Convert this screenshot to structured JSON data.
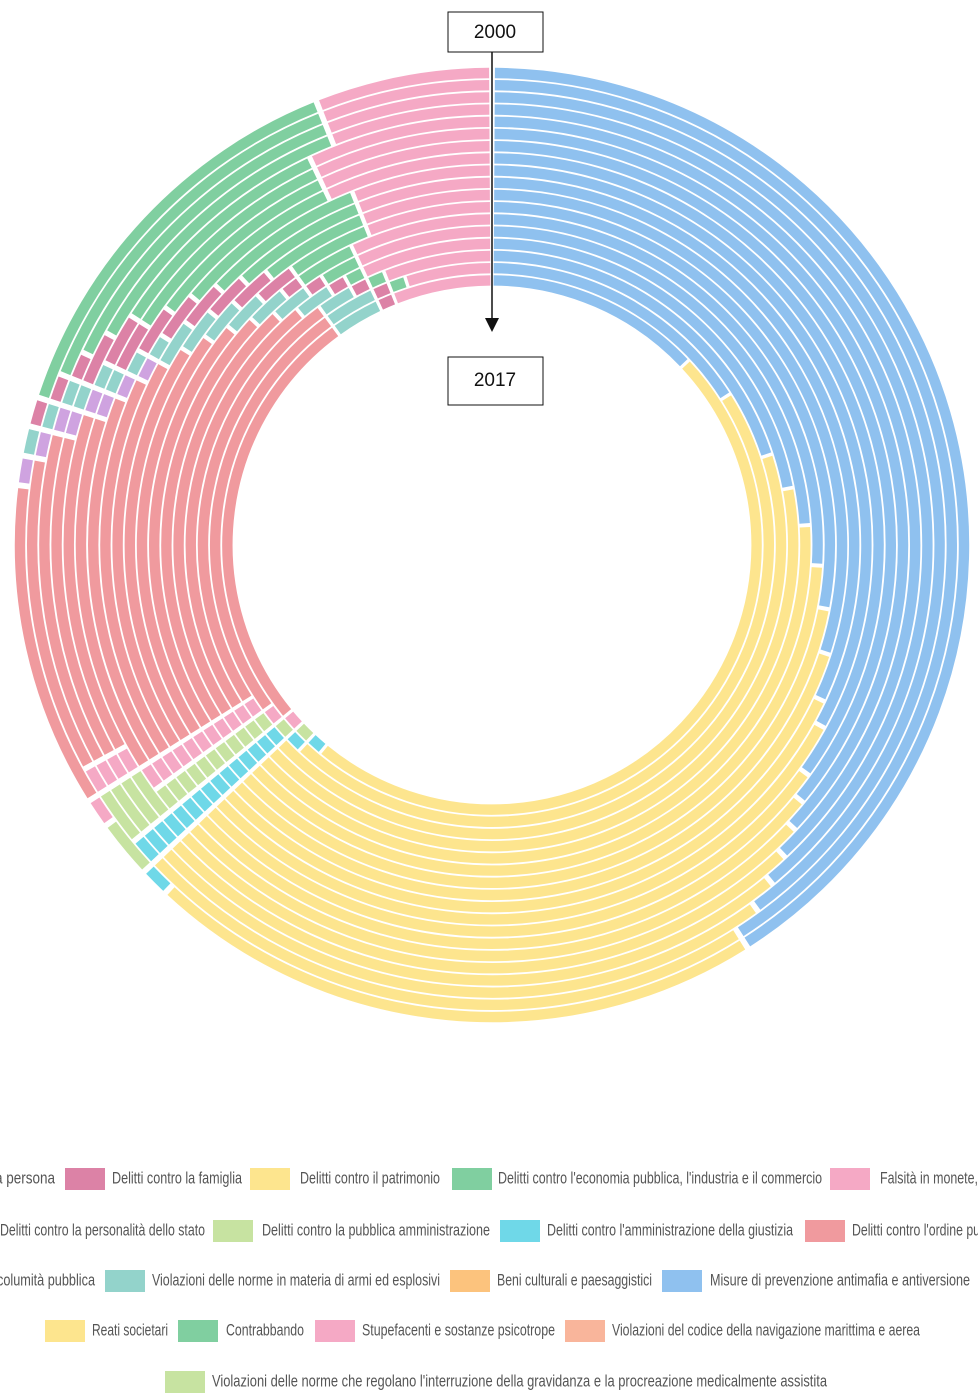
{
  "chart_data": {
    "type": "radial_stacked_rings",
    "categories": [
      "2000",
      null,
      null,
      null,
      null,
      null,
      null,
      null,
      null,
      null,
      null,
      null,
      null,
      null,
      null,
      null,
      null,
      "2017"
    ],
    "series": [
      {
        "name": "a persona",
        "color": "#e88a8f",
        "values": [
          0,
          0,
          0,
          0,
          0,
          0,
          0,
          0,
          0,
          0,
          0,
          0,
          0,
          0,
          0,
          0,
          0,
          0
        ]
      },
      {
        "name": "Delitti contro la famiglia",
        "color": "#dc82a6",
        "values": [
          1,
          1,
          1,
          2,
          2,
          2,
          2,
          2,
          2,
          2,
          2,
          2,
          1,
          1,
          1,
          1,
          1,
          1
        ]
      },
      {
        "name": "Delitti contro il patrimonio",
        "color": "#fde58e",
        "values": [
          21,
          22,
          23,
          24,
          25,
          26,
          27,
          28,
          30,
          31,
          33,
          35,
          37,
          39,
          41,
          43,
          46,
          48
        ]
      },
      {
        "name": "Delitti contro l'economia pubblica, l'industria e il commercio",
        "color": "#80cfa0",
        "values": [
          14,
          13,
          12,
          11,
          9,
          9,
          8,
          7,
          7,
          6,
          5,
          4,
          3,
          2,
          1,
          1,
          1,
          0
        ]
      },
      {
        "name": "Falsità in monete,",
        "color": "#f5a9c5",
        "values": [
          6,
          6,
          6,
          6,
          7,
          7,
          7,
          7,
          6,
          6,
          6,
          6,
          7,
          7,
          7,
          6,
          5,
          6
        ]
      },
      {
        "name": "Delitti contro la personalità dello stato",
        "color": "#cfa3e0",
        "values": [
          1,
          1,
          1,
          1,
          1,
          1,
          1,
          1,
          0,
          0,
          0,
          0,
          0,
          0,
          0,
          0,
          0,
          0
        ]
      },
      {
        "name": "Delitti contro la pubblica amministrazione",
        "color": "#c7e3a1",
        "values": [
          2,
          2,
          2,
          2,
          2,
          1,
          1,
          1,
          1,
          1,
          1,
          1,
          1,
          1,
          1,
          1,
          1,
          1
        ]
      },
      {
        "name": "Delitti contro l'amministrazione della giustizia",
        "color": "#6fd8e8",
        "values": [
          1,
          1,
          1,
          1,
          1,
          1,
          1,
          1,
          1,
          1,
          1,
          1,
          1,
          1,
          1,
          1,
          1,
          1
        ]
      },
      {
        "name": "Delitti contro l'ordine pu",
        "color": "#f09a9e",
        "values": [
          11,
          11,
          12,
          12,
          13,
          14,
          15,
          16,
          17,
          18,
          19,
          20,
          21,
          22,
          23,
          24,
          25,
          26
        ]
      },
      {
        "name": "columità pubblica",
        "color": "#f6b8a0",
        "values": [
          0,
          0,
          0,
          0,
          0,
          0,
          0,
          0,
          0,
          0,
          0,
          0,
          0,
          0,
          0,
          0,
          0,
          0
        ]
      },
      {
        "name": "Violazioni delle norme in materia di armi ed esplosivi",
        "color": "#93d3cb",
        "values": [
          1,
          1,
          1,
          1,
          1,
          1,
          1,
          1,
          2,
          2,
          2,
          2,
          2,
          2,
          2,
          2,
          3,
          3
        ]
      },
      {
        "name": "Beni culturali e paesaggistici",
        "color": "#fcc37d",
        "values": [
          0,
          0,
          0,
          0,
          0,
          0,
          0,
          0,
          0,
          0,
          0,
          0,
          0,
          0,
          0,
          0,
          0,
          0
        ]
      },
      {
        "name": "Misure di prevenzione antimafia e antiversione",
        "color": "#8fc1ef",
        "values": [
          41,
          41,
          40,
          39,
          38,
          37,
          36,
          35,
          33,
          32,
          30,
          28,
          26,
          24,
          22,
          20,
          16,
          13
        ]
      },
      {
        "name": "Reati societari",
        "color": "#fde58e",
        "values": [
          0,
          0,
          0,
          0,
          0,
          0,
          0,
          0,
          0,
          0,
          0,
          0,
          0,
          0,
          0,
          0,
          0,
          0
        ]
      },
      {
        "name": "Contrabbando",
        "color": "#80cfa0",
        "values": [
          0,
          0,
          0,
          0,
          0,
          0,
          0,
          0,
          0,
          0,
          0,
          0,
          0,
          0,
          0,
          0,
          0,
          0
        ]
      },
      {
        "name": "Stupefacenti e sostanze psicotrope",
        "color": "#f5a9c5",
        "values": [
          1,
          1,
          1,
          1,
          1,
          1,
          1,
          1,
          1,
          1,
          1,
          1,
          1,
          1,
          1,
          1,
          1,
          1
        ]
      },
      {
        "name": "Violazioni del codice della navigazione marittima e aerea",
        "color": "#f9b59b",
        "values": [
          0,
          0,
          0,
          0,
          0,
          0,
          0,
          0,
          0,
          0,
          0,
          0,
          0,
          0,
          0,
          0,
          0,
          0
        ]
      },
      {
        "name": "Violazioni delle norme che regolano l'interruzione della gravidanza e la procreazione medicalmente assistita",
        "color": "#c7e3a1",
        "values": [
          0,
          0,
          0,
          0,
          0,
          0,
          0,
          0,
          0,
          0,
          0,
          0,
          0,
          0,
          0,
          0,
          0,
          0
        ]
      }
    ]
  }
}
